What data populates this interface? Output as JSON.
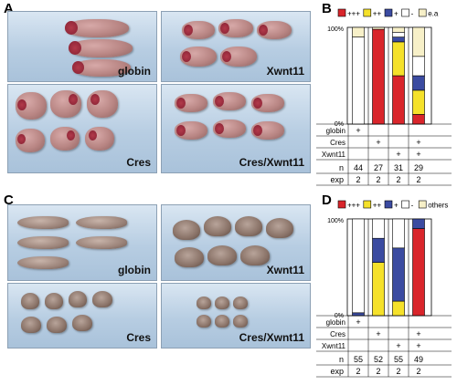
{
  "panels": {
    "a": {
      "letter": "A",
      "photos": [
        {
          "label": "globin"
        },
        {
          "label": "Xwnt11"
        },
        {
          "label": "Cres"
        },
        {
          "label": "Cres/Xwnt11"
        }
      ]
    },
    "b": {
      "letter": "B"
    },
    "c": {
      "letter": "C",
      "photos": [
        {
          "label": "globin"
        },
        {
          "label": "Xwnt11"
        },
        {
          "label": "Cres"
        },
        {
          "label": "Cres/Xwnt11"
        }
      ]
    },
    "d": {
      "letter": "D"
    }
  },
  "chart_data": [
    {
      "type": "bar",
      "stacked": true,
      "legend": [
        "+++",
        "++",
        "+",
        "-",
        "e.a"
      ],
      "colors": [
        "#d9252b",
        "#f5e12a",
        "#3b4ba1",
        "#ffffff",
        "#f7f0c8"
      ],
      "ylim": [
        0,
        100
      ],
      "yticks": [
        "100%",
        "0%"
      ],
      "series": [
        {
          "values": [
            0,
            98,
            50,
            10
          ]
        },
        {
          "values": [
            0,
            0,
            35,
            25
          ]
        },
        {
          "values": [
            0,
            0,
            5,
            15
          ]
        },
        {
          "values": [
            90,
            0,
            5,
            20
          ]
        },
        {
          "values": [
            10,
            2,
            5,
            30
          ]
        }
      ],
      "rows": [
        {
          "label": "globin",
          "marks": [
            "+",
            "",
            "",
            ""
          ]
        },
        {
          "label": "Cres",
          "marks": [
            "",
            "+",
            "",
            "+"
          ]
        },
        {
          "label": "Xwnt11",
          "marks": [
            "",
            "",
            "+",
            "+"
          ]
        }
      ],
      "n": {
        "label": "n",
        "values": [
          "44",
          "27",
          "31",
          "29"
        ]
      },
      "exp": {
        "label": "exp",
        "values": [
          "2",
          "2",
          "2",
          "2"
        ]
      }
    },
    {
      "type": "bar",
      "stacked": true,
      "legend": [
        "+++",
        "++",
        "+",
        "-",
        "others"
      ],
      "colors": [
        "#d9252b",
        "#f5e12a",
        "#3b4ba1",
        "#ffffff",
        "#f7f0c8"
      ],
      "ylim": [
        0,
        100
      ],
      "yticks": [
        "100%",
        "0%"
      ],
      "series": [
        {
          "values": [
            0,
            0,
            0,
            90
          ]
        },
        {
          "values": [
            0,
            55,
            15,
            0
          ]
        },
        {
          "values": [
            3,
            25,
            55,
            10
          ]
        },
        {
          "values": [
            97,
            20,
            30,
            0
          ]
        },
        {
          "values": [
            0,
            0,
            0,
            0
          ]
        }
      ],
      "rows": [
        {
          "label": "globin",
          "marks": [
            "+",
            "",
            "",
            ""
          ]
        },
        {
          "label": "Cres",
          "marks": [
            "",
            "+",
            "",
            "+"
          ]
        },
        {
          "label": "Xwnt11",
          "marks": [
            "",
            "",
            "+",
            "+"
          ]
        }
      ],
      "n": {
        "label": "n",
        "values": [
          "55",
          "52",
          "55",
          "49"
        ]
      },
      "exp": {
        "label": "exp",
        "values": [
          "2",
          "2",
          "2",
          "2"
        ]
      }
    }
  ]
}
